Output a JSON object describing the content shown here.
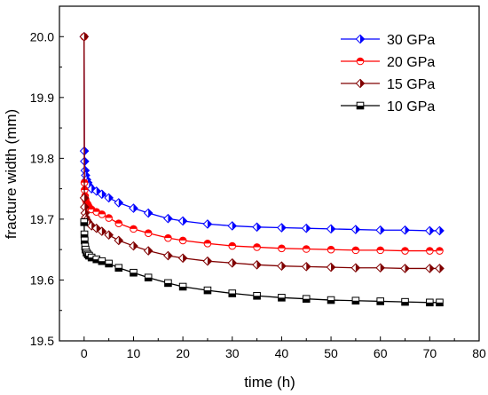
{
  "chart_data": {
    "type": "line",
    "xlabel": "time (h)",
    "ylabel": "fracture width (mm)",
    "xlim": [
      -5,
      80
    ],
    "ylim": [
      19.5,
      20.05
    ],
    "xticks": [
      0,
      10,
      20,
      30,
      40,
      50,
      60,
      70,
      80
    ],
    "yticks": [
      19.5,
      19.6,
      19.7,
      19.8,
      19.9,
      20.0
    ],
    "xtick_labels": [
      "0",
      "10",
      "20",
      "30",
      "40",
      "50",
      "60",
      "70",
      "80"
    ],
    "ytick_labels": [
      "19.5",
      "19.6",
      "19.7",
      "19.8",
      "19.9",
      "20.0"
    ],
    "legend_position": "top-right",
    "series": [
      {
        "name": "30 GPa",
        "color": "#0000ff",
        "marker": "diamond",
        "x": [
          0,
          0.05,
          0.1,
          0.2,
          0.3,
          0.5,
          0.75,
          1,
          1.5,
          2.5,
          3.6,
          5,
          7,
          10,
          13,
          17,
          20,
          25,
          30,
          35,
          40,
          45,
          50,
          55,
          60,
          65,
          70,
          72
        ],
        "values": [
          20.0,
          19.812,
          19.795,
          19.78,
          19.772,
          19.765,
          19.76,
          19.755,
          19.75,
          19.746,
          19.741,
          19.735,
          19.727,
          19.718,
          19.71,
          19.701,
          19.697,
          19.692,
          19.689,
          19.687,
          19.686,
          19.685,
          19.684,
          19.683,
          19.682,
          19.682,
          19.681,
          19.681
        ]
      },
      {
        "name": "20 GPa",
        "color": "#ff0000",
        "marker": "circle",
        "x": [
          0,
          0.05,
          0.1,
          0.2,
          0.3,
          0.5,
          0.75,
          1,
          1.5,
          2.5,
          3.6,
          5,
          7,
          10,
          13,
          17,
          20,
          25,
          30,
          35,
          40,
          45,
          50,
          55,
          60,
          65,
          70,
          72
        ],
        "values": [
          20.0,
          19.76,
          19.748,
          19.738,
          19.732,
          19.727,
          19.724,
          19.72,
          19.716,
          19.712,
          19.708,
          19.702,
          19.693,
          19.684,
          19.677,
          19.669,
          19.665,
          19.66,
          19.656,
          19.654,
          19.652,
          19.651,
          19.65,
          19.649,
          19.649,
          19.648,
          19.648,
          19.648
        ]
      },
      {
        "name": "15 GPa",
        "color": "#800000",
        "marker": "diamond-half",
        "x": [
          0,
          0.05,
          0.1,
          0.2,
          0.3,
          0.5,
          0.75,
          1,
          1.5,
          2.5,
          3.6,
          5,
          7,
          10,
          13,
          17,
          20,
          25,
          30,
          35,
          40,
          45,
          50,
          55,
          60,
          65,
          70,
          72
        ],
        "values": [
          20.0,
          19.735,
          19.72,
          19.71,
          19.703,
          19.699,
          19.696,
          19.693,
          19.689,
          19.685,
          19.68,
          19.674,
          19.665,
          19.656,
          19.648,
          19.64,
          19.636,
          19.631,
          19.628,
          19.625,
          19.623,
          19.622,
          19.621,
          19.62,
          19.62,
          19.619,
          19.619,
          19.619
        ]
      },
      {
        "name": "10 GPa",
        "color": "#000000",
        "marker": "square",
        "x": [
          0,
          0.05,
          0.1,
          0.2,
          0.3,
          0.5,
          0.75,
          1,
          1.5,
          2.5,
          3.6,
          5,
          7,
          10,
          13,
          17,
          20,
          25,
          30,
          35,
          40,
          45,
          50,
          55,
          60,
          65,
          70,
          72
        ],
        "values": [
          19.695,
          19.675,
          19.665,
          19.655,
          19.65,
          19.645,
          19.642,
          19.64,
          19.637,
          19.634,
          19.631,
          19.627,
          19.62,
          19.612,
          19.604,
          19.595,
          19.589,
          19.583,
          19.578,
          19.574,
          19.571,
          19.569,
          19.567,
          19.566,
          19.565,
          19.564,
          19.563,
          19.563
        ]
      }
    ]
  }
}
